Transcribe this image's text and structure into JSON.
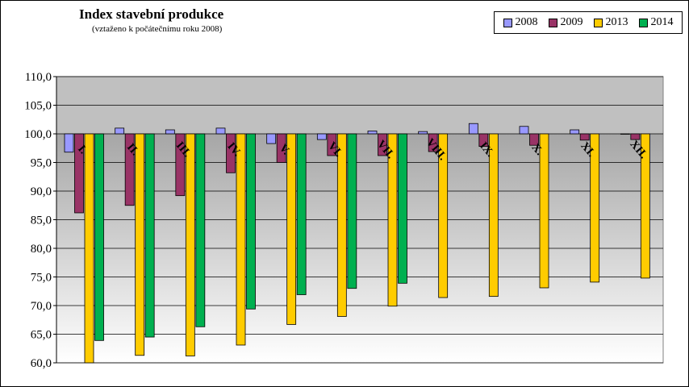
{
  "chart_data": {
    "type": "bar",
    "title": "Index stavební produkce",
    "subtitle": "(vztaženo k počátečnímu  roku 2008)",
    "categories": [
      "I.",
      "II.",
      "III.",
      "IV.",
      "V.",
      "VI.",
      "VII.",
      "VIII.",
      "IX.",
      "X.",
      "XI.",
      "XII."
    ],
    "baseline": 100,
    "ylim": [
      60,
      110
    ],
    "yticks": [
      "60,0",
      "65,0",
      "70,0",
      "75,0",
      "80,0",
      "85,0",
      "90,0",
      "95,0",
      "100,0",
      "105,0",
      "110,0"
    ],
    "legend_position": "top-right",
    "series": [
      {
        "name": "2008",
        "color": "#9999ff",
        "values": [
          96.8,
          101.0,
          100.7,
          101.0,
          98.3,
          99.0,
          100.5,
          100.4,
          101.8,
          101.3,
          100.7,
          100.0
        ]
      },
      {
        "name": "2009",
        "color": "#993366",
        "values": [
          86.2,
          87.5,
          89.2,
          93.2,
          95.0,
          96.2,
          96.2,
          96.9,
          97.8,
          98.0,
          98.9,
          99.0
        ]
      },
      {
        "name": "2013",
        "color": "#ffcc00",
        "values": [
          60.0,
          61.3,
          61.2,
          63.1,
          66.7,
          68.1,
          69.9,
          71.4,
          71.6,
          73.1,
          74.1,
          74.8
        ]
      },
      {
        "name": "2014",
        "color": "#00b050",
        "values": [
          63.9,
          64.5,
          66.3,
          69.4,
          71.9,
          73.0,
          73.9,
          null,
          null,
          null,
          null,
          null
        ]
      }
    ],
    "upper_band_color": "#c0c0c0",
    "grid": true
  }
}
